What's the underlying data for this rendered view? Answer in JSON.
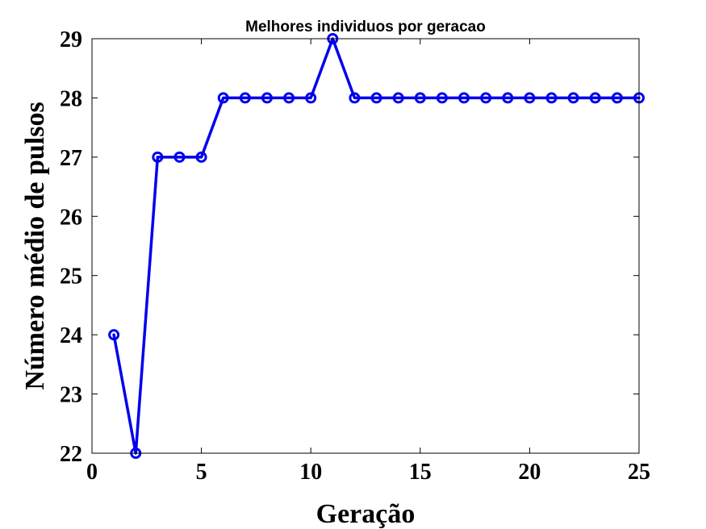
{
  "chart_data": {
    "type": "line",
    "title": "Melhores individuos por geracao",
    "xlabel": "Geração",
    "ylabel": "Número médio de pulsos",
    "xlim": [
      0,
      25
    ],
    "ylim": [
      22,
      29
    ],
    "xticks": [
      0,
      5,
      10,
      15,
      20,
      25
    ],
    "yticks": [
      22,
      23,
      24,
      25,
      26,
      27,
      28,
      29
    ],
    "grid": false,
    "series": [
      {
        "color": "#0000ee",
        "marker": "circle",
        "x": [
          1,
          2,
          3,
          4,
          5,
          6,
          7,
          8,
          9,
          10,
          11,
          12,
          13,
          14,
          15,
          16,
          17,
          18,
          19,
          20,
          21,
          22,
          23,
          24,
          25
        ],
        "values": [
          24,
          22,
          27,
          27,
          27,
          28,
          28,
          28,
          28,
          28,
          29,
          28,
          28,
          28,
          28,
          28,
          28,
          28,
          28,
          28,
          28,
          28,
          28,
          28,
          28
        ]
      }
    ]
  }
}
